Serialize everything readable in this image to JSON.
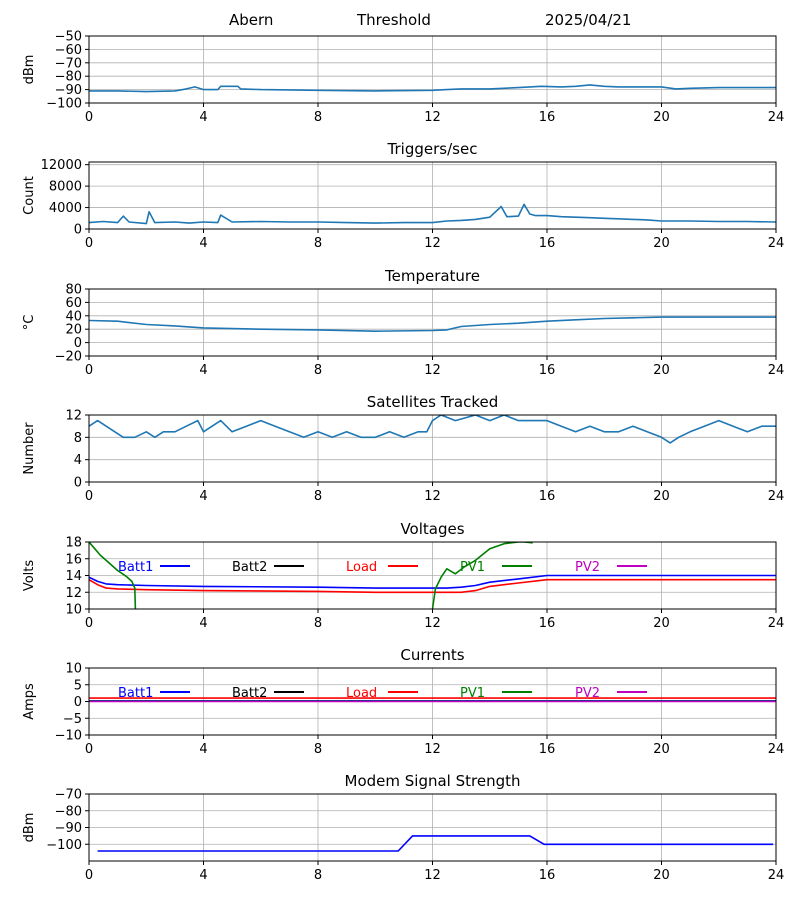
{
  "header": {
    "station": "Abern",
    "mode": "Threshold",
    "date": "2025/04/21"
  },
  "colors": {
    "series_default": "#1f77b4",
    "grid": "#b0b0b0",
    "batt1": "#0000ff",
    "batt2": "#000000",
    "load": "#ff0000",
    "pv1": "#008000",
    "pv2": "#bf00bf"
  },
  "chart_data": [
    {
      "id": "threshold",
      "type": "line",
      "title": "",
      "xlabel": "",
      "ylabel": "dBm",
      "xlim": [
        0,
        24
      ],
      "ylim": [
        -100,
        -50
      ],
      "xticks": [
        0,
        4,
        8,
        12,
        16,
        20,
        24
      ],
      "yticks": [
        -100,
        -90,
        -80,
        -70,
        -60,
        -50
      ],
      "grid": true,
      "series": [
        {
          "color": "#1f77b4",
          "x": [
            0,
            1,
            2,
            3,
            3.4,
            3.7,
            4,
            4.5,
            4.6,
            5.2,
            5.3,
            6,
            8,
            10,
            12,
            12.5,
            13,
            14,
            15,
            15.8,
            16.5,
            17,
            17.5,
            18,
            18.5,
            19,
            20,
            20.5,
            21,
            22,
            23,
            24
          ],
          "y": [
            -91,
            -91,
            -91.5,
            -91,
            -89.5,
            -88,
            -90,
            -90,
            -87.5,
            -87.5,
            -89.5,
            -90,
            -90.5,
            -91,
            -90.5,
            -90,
            -89.5,
            -89.5,
            -88.5,
            -87.5,
            -88,
            -87.5,
            -86.5,
            -87.5,
            -88,
            -88,
            -88,
            -89.5,
            -89,
            -88.5,
            -88.5,
            -88.5
          ]
        }
      ]
    },
    {
      "id": "triggers",
      "type": "line",
      "title": "Triggers/sec",
      "xlabel": "",
      "ylabel": "Count",
      "xlim": [
        0,
        24
      ],
      "ylim": [
        0,
        12500
      ],
      "xticks": [
        0,
        4,
        8,
        12,
        16,
        20,
        24
      ],
      "yticks": [
        0,
        4000,
        8000,
        12000
      ],
      "grid": true,
      "series": [
        {
          "color": "#1f77b4",
          "x": [
            0,
            0.5,
            1,
            1.2,
            1.4,
            2,
            2.1,
            2.3,
            3,
            3.5,
            4,
            4.5,
            4.6,
            5,
            6,
            7,
            8,
            9,
            10,
            11,
            12,
            12.5,
            13,
            13.5,
            14,
            14.4,
            14.6,
            15,
            15.2,
            15.4,
            15.6,
            16,
            16.5,
            17,
            17.5,
            18,
            18.5,
            19,
            19.5,
            20,
            21,
            22,
            23,
            24
          ],
          "y": [
            1200,
            1400,
            1200,
            2400,
            1300,
            1000,
            3200,
            1200,
            1300,
            1100,
            1300,
            1200,
            2600,
            1300,
            1400,
            1300,
            1300,
            1200,
            1100,
            1200,
            1200,
            1500,
            1600,
            1800,
            2200,
            4200,
            2300,
            2400,
            4600,
            2800,
            2500,
            2500,
            2300,
            2200,
            2100,
            2000,
            1900,
            1800,
            1700,
            1500,
            1500,
            1400,
            1400,
            1300
          ]
        }
      ]
    },
    {
      "id": "temperature",
      "type": "line",
      "title": "Temperature",
      "xlabel": "",
      "ylabel": "°C",
      "xlim": [
        0,
        24
      ],
      "ylim": [
        -20,
        80
      ],
      "xticks": [
        0,
        4,
        8,
        12,
        16,
        20,
        24
      ],
      "yticks": [
        -20,
        0,
        20,
        40,
        60,
        80
      ],
      "grid": true,
      "series": [
        {
          "color": "#1f77b4",
          "x": [
            0,
            1,
            2,
            3,
            4,
            6,
            8,
            10,
            12,
            12.5,
            13,
            14,
            15,
            16,
            17,
            18,
            19,
            20,
            22,
            24
          ],
          "y": [
            33,
            32,
            27,
            25,
            22,
            20,
            19,
            17,
            18,
            19,
            24,
            27,
            29,
            32,
            34,
            36,
            37,
            38,
            38,
            38
          ]
        }
      ]
    },
    {
      "id": "satellites",
      "type": "line",
      "title": "Satellites Tracked",
      "xlabel": "",
      "ylabel": "Number",
      "xlim": [
        0,
        24
      ],
      "ylim": [
        0,
        12
      ],
      "xticks": [
        0,
        4,
        8,
        12,
        16,
        20,
        24
      ],
      "yticks": [
        0,
        4,
        8,
        12
      ],
      "grid": true,
      "series": [
        {
          "color": "#1f77b4",
          "x": [
            0,
            0.3,
            0.6,
            0.9,
            1.2,
            1.6,
            2,
            2.3,
            2.6,
            3,
            3.4,
            3.8,
            4,
            4.3,
            4.6,
            5,
            5.5,
            6,
            6.5,
            7,
            7.5,
            8,
            8.5,
            9,
            9.5,
            10,
            10.5,
            11,
            11.5,
            11.8,
            12,
            12.3,
            12.8,
            13.5,
            14,
            14.5,
            15,
            15.5,
            16,
            16.5,
            17,
            17.5,
            18,
            18.5,
            19,
            19.5,
            20,
            20.3,
            20.6,
            21,
            21.5,
            22,
            22.5,
            23,
            23.5,
            24
          ],
          "y": [
            10,
            11,
            10,
            9,
            8,
            8,
            9,
            8,
            9,
            9,
            10,
            11,
            9,
            10,
            11,
            9,
            10,
            11,
            10,
            9,
            8,
            9,
            8,
            9,
            8,
            8,
            9,
            8,
            9,
            9,
            11,
            12,
            11,
            12,
            11,
            12,
            11,
            11,
            11,
            10,
            9,
            10,
            9,
            9,
            10,
            9,
            8,
            7,
            8,
            9,
            10,
            11,
            10,
            9,
            10,
            10
          ]
        }
      ]
    },
    {
      "id": "voltages",
      "type": "line",
      "title": "Voltages",
      "xlabel": "",
      "ylabel": "Volts",
      "xlim": [
        0,
        24
      ],
      "ylim": [
        10,
        18
      ],
      "xticks": [
        0,
        4,
        8,
        12,
        16,
        20,
        24
      ],
      "yticks": [
        10,
        12,
        14,
        16,
        18
      ],
      "grid": true,
      "legend_placement": "top",
      "series": [
        {
          "name": "Batt1",
          "color": "#0000ff",
          "x": [
            0,
            0.3,
            0.6,
            1,
            2,
            4,
            8,
            10,
            12,
            12.5,
            13,
            13.5,
            14,
            15,
            16,
            18,
            20,
            22,
            24
          ],
          "y": [
            13.8,
            13.3,
            13.0,
            12.9,
            12.8,
            12.7,
            12.6,
            12.5,
            12.5,
            12.5,
            12.6,
            12.8,
            13.2,
            13.6,
            14.0,
            14.0,
            14.0,
            14.0,
            14.0
          ]
        },
        {
          "name": "Batt2",
          "color": "#000000",
          "x": [],
          "y": []
        },
        {
          "name": "Load",
          "color": "#ff0000",
          "x": [
            0,
            0.3,
            0.6,
            1,
            2,
            4,
            8,
            10,
            12,
            12.5,
            13,
            13.5,
            14,
            15,
            16,
            18,
            20,
            22,
            24
          ],
          "y": [
            13.5,
            12.9,
            12.5,
            12.4,
            12.3,
            12.2,
            12.1,
            12.0,
            12.0,
            12.0,
            12.0,
            12.2,
            12.7,
            13.1,
            13.5,
            13.5,
            13.5,
            13.5,
            13.5
          ]
        },
        {
          "name": "PV1",
          "color": "#008000",
          "x": [
            0,
            0.2,
            0.4,
            0.7,
            1,
            1.3,
            1.5,
            1.6,
            1.62,
            null,
            12,
            12.1,
            12.3,
            12.5,
            12.8,
            13.1,
            13.5,
            14,
            14.5,
            15,
            15.2,
            15.5
          ],
          "y": [
            18,
            17.2,
            16.4,
            15.5,
            14.6,
            13.9,
            13.3,
            12.5,
            10,
            null,
            10,
            12.4,
            13.8,
            14.8,
            14.2,
            15.0,
            15.8,
            17.2,
            17.8,
            18,
            18,
            17.9
          ]
        },
        {
          "name": "PV2",
          "color": "#bf00bf",
          "x": [],
          "y": []
        }
      ]
    },
    {
      "id": "currents",
      "type": "line",
      "title": "Currents",
      "xlabel": "",
      "ylabel": "Amps",
      "xlim": [
        0,
        24
      ],
      "ylim": [
        -10,
        10
      ],
      "xticks": [
        0,
        4,
        8,
        12,
        16,
        20,
        24
      ],
      "yticks": [
        -10,
        -5,
        0,
        5,
        10
      ],
      "grid": true,
      "legend_placement": "top",
      "series": [
        {
          "name": "Batt1",
          "color": "#0000ff",
          "x": [
            0,
            24
          ],
          "y": [
            0.2,
            0.2
          ]
        },
        {
          "name": "Batt2",
          "color": "#000000",
          "x": [],
          "y": []
        },
        {
          "name": "Load",
          "color": "#ff0000",
          "x": [
            0,
            4,
            8,
            12,
            16,
            20,
            24
          ],
          "y": [
            1.0,
            1.0,
            1.0,
            1.0,
            1.0,
            1.0,
            1.0
          ]
        },
        {
          "name": "PV1",
          "color": "#008000",
          "x": [
            0,
            24
          ],
          "y": [
            0.1,
            0.1
          ]
        },
        {
          "name": "PV2",
          "color": "#bf00bf",
          "x": [
            0,
            24
          ],
          "y": [
            0.0,
            0.0
          ]
        }
      ]
    },
    {
      "id": "modem",
      "type": "line",
      "title": "Modem Signal Strength",
      "xlabel": "",
      "ylabel": "dBm",
      "xlim": [
        0,
        24
      ],
      "ylim": [
        -110,
        -70
      ],
      "xticks": [
        0,
        4,
        8,
        12,
        16,
        20,
        24
      ],
      "yticks": [
        -100,
        -90,
        -80,
        -70
      ],
      "grid": true,
      "series": [
        {
          "color": "#0000ff",
          "x": [
            0.3,
            10.8,
            11.3,
            15.4,
            15.9,
            23.9
          ],
          "y": [
            -104,
            -104,
            -95,
            -95,
            -100,
            -100
          ]
        }
      ]
    }
  ]
}
